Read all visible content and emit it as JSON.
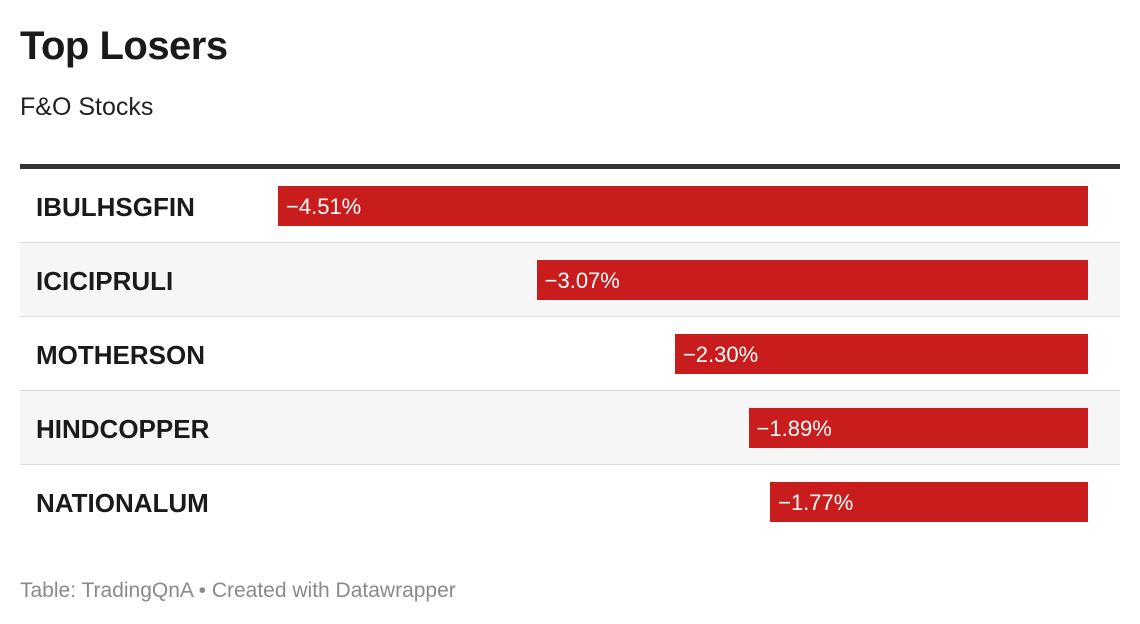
{
  "title": "Top Losers",
  "subtitle": "F&O Stocks",
  "footer": {
    "source": "Table: TradingQnA",
    "separator": "•",
    "credit": "Created with Datawrapper"
  },
  "colors": {
    "bar": "#c91d1d",
    "rule": "#333333",
    "alt_row": "#f6f6f6"
  },
  "chart_data": {
    "type": "bar",
    "orientation": "horizontal",
    "title": "Top Losers",
    "subtitle": "F&O Stocks",
    "categories": [
      "IBULHSGFIN",
      "ICICIPRULI",
      "MOTHERSON",
      "HINDCOPPER",
      "NATIONALUM"
    ],
    "values": [
      -4.51,
      -3.07,
      -2.3,
      -1.89,
      -1.77
    ],
    "labels": [
      "−4.51%",
      "−3.07%",
      "−2.30%",
      "−1.89%",
      "−1.77%"
    ],
    "xlim": [
      -4.51,
      0
    ],
    "grid": false,
    "legend": "none"
  }
}
